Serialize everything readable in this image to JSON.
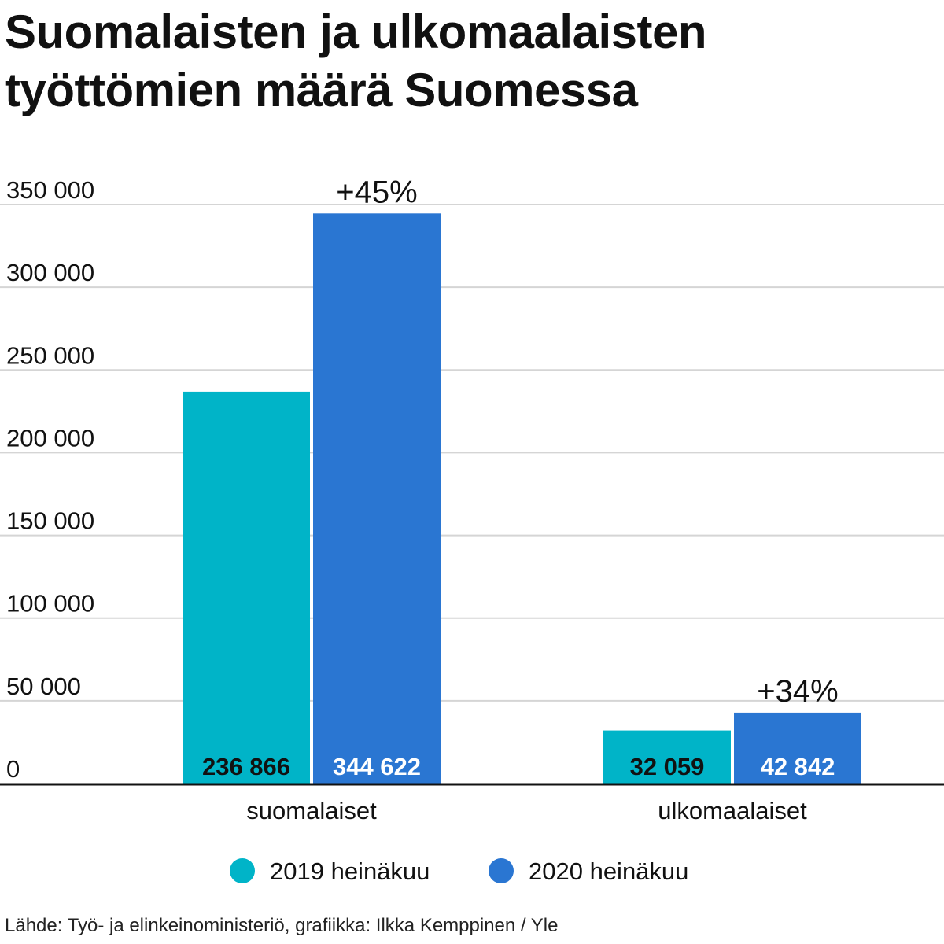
{
  "title_lines": [
    "Suomalaisten ja ulkomaalaisten",
    "työttömien määrä Suomessa"
  ],
  "source": "Lähde: Työ- ja elinkeinoministeriö, grafiikka: Ilkka Kemppinen / Yle",
  "chart_data": {
    "type": "bar",
    "title": "Suomalaisten ja ulkomaalaisten työttömien määrä Suomessa",
    "categories": [
      "suomalaiset",
      "ulkomaalaiset"
    ],
    "series": [
      {
        "name": "2019 heinäkuu",
        "color": "#00b4c8",
        "label_color": "#111111",
        "values": [
          236866,
          32059
        ],
        "labels": [
          "236 866",
          "32 059"
        ]
      },
      {
        "name": "2020 heinäkuu",
        "color": "#2a76d2",
        "label_color": "#ffffff",
        "values": [
          344622,
          42842
        ],
        "labels": [
          "344 622",
          "42 842"
        ]
      }
    ],
    "annotations": [
      "+45%",
      "+34%"
    ],
    "ylim": [
      0,
      350000
    ],
    "yticks": [
      0,
      50000,
      100000,
      150000,
      200000,
      250000,
      300000,
      350000
    ],
    "ytick_labels": [
      "0",
      "50 000",
      "100 000",
      "150 000",
      "200 000",
      "250 000",
      "300 000",
      "350 000"
    ],
    "xlabel": "",
    "ylabel": "",
    "grid": true,
    "legend_position": "bottom-center",
    "gridline_color": "#d5d5d5",
    "baseline_color": "#111111"
  }
}
